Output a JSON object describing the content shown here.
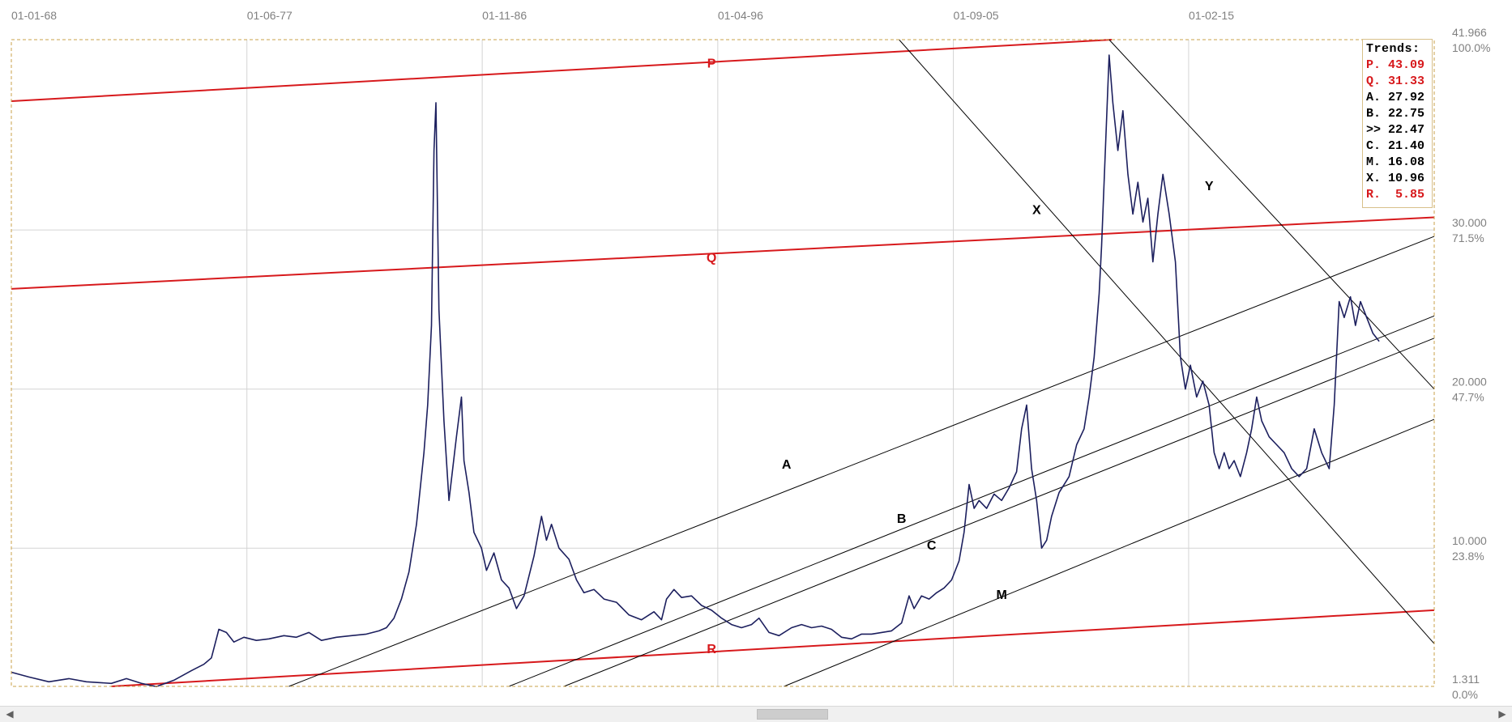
{
  "chart_data": {
    "type": "line",
    "title": "",
    "xlabel": "",
    "ylabel": "",
    "x_tick_labels": [
      "01-01-68",
      "01-06-77",
      "01-11-86",
      "01-04-96",
      "01-09-05",
      "01-02-15"
    ],
    "x_tick_years": [
      1968.0,
      1977.42,
      1986.83,
      1996.25,
      2005.67,
      2015.08
    ],
    "xlim": [
      1968.0,
      2024.9
    ],
    "ylim": [
      1.311,
      41.966
    ],
    "grid": true,
    "y_ticks": [
      {
        "value": 41.966,
        "label": "41.966",
        "pct": "100.0%"
      },
      {
        "value": 30.0,
        "label": "30.000",
        "pct": "71.5%"
      },
      {
        "value": 20.0,
        "label": "20.000",
        "pct": "47.7%"
      },
      {
        "value": 10.0,
        "label": "10.000",
        "pct": "23.8%"
      },
      {
        "value": 1.311,
        "label": "1.311",
        "pct": "0.0%"
      }
    ],
    "series": [
      {
        "color": "#1c1f5e",
        "points": [
          [
            1968.0,
            2.2
          ],
          [
            1968.7,
            1.9
          ],
          [
            1969.5,
            1.6
          ],
          [
            1970.3,
            1.8
          ],
          [
            1971.0,
            1.6
          ],
          [
            1972.0,
            1.5
          ],
          [
            1972.6,
            1.8
          ],
          [
            1973.2,
            1.5
          ],
          [
            1973.8,
            1.3
          ],
          [
            1974.5,
            1.7
          ],
          [
            1975.2,
            2.3
          ],
          [
            1975.7,
            2.7
          ],
          [
            1976.0,
            3.1
          ],
          [
            1976.3,
            4.9
          ],
          [
            1976.6,
            4.7
          ],
          [
            1976.9,
            4.1
          ],
          [
            1977.3,
            4.4
          ],
          [
            1977.8,
            4.2
          ],
          [
            1978.3,
            4.3
          ],
          [
            1978.9,
            4.5
          ],
          [
            1979.4,
            4.4
          ],
          [
            1979.9,
            4.7
          ],
          [
            1980.4,
            4.2
          ],
          [
            1981.0,
            4.4
          ],
          [
            1981.6,
            4.5
          ],
          [
            1982.2,
            4.6
          ],
          [
            1982.7,
            4.8
          ],
          [
            1983.0,
            5.0
          ],
          [
            1983.3,
            5.6
          ],
          [
            1983.6,
            6.8
          ],
          [
            1983.9,
            8.5
          ],
          [
            1984.2,
            11.5
          ],
          [
            1984.5,
            16.0
          ],
          [
            1984.65,
            19.0
          ],
          [
            1984.8,
            24.0
          ],
          [
            1984.9,
            35.0
          ],
          [
            1984.98,
            38.0
          ],
          [
            1985.1,
            25.0
          ],
          [
            1985.3,
            18.0
          ],
          [
            1985.5,
            13.0
          ],
          [
            1985.65,
            15.0
          ],
          [
            1985.8,
            17.0
          ],
          [
            1986.0,
            19.5
          ],
          [
            1986.1,
            15.5
          ],
          [
            1986.3,
            13.5
          ],
          [
            1986.5,
            11.0
          ],
          [
            1986.8,
            10.0
          ],
          [
            1987.0,
            8.6
          ],
          [
            1987.3,
            9.7
          ],
          [
            1987.6,
            8.0
          ],
          [
            1987.9,
            7.5
          ],
          [
            1988.2,
            6.2
          ],
          [
            1988.5,
            7.0
          ],
          [
            1988.9,
            9.5
          ],
          [
            1989.2,
            12.0
          ],
          [
            1989.4,
            10.5
          ],
          [
            1989.6,
            11.5
          ],
          [
            1989.9,
            10.0
          ],
          [
            1990.3,
            9.3
          ],
          [
            1990.6,
            8.0
          ],
          [
            1990.9,
            7.2
          ],
          [
            1991.3,
            7.4
          ],
          [
            1991.7,
            6.8
          ],
          [
            1992.2,
            6.6
          ],
          [
            1992.7,
            5.8
          ],
          [
            1993.2,
            5.5
          ],
          [
            1993.7,
            6.0
          ],
          [
            1994.0,
            5.5
          ],
          [
            1994.2,
            6.8
          ],
          [
            1994.5,
            7.4
          ],
          [
            1994.8,
            6.9
          ],
          [
            1995.2,
            7.0
          ],
          [
            1995.6,
            6.4
          ],
          [
            1996.0,
            6.1
          ],
          [
            1996.4,
            5.6
          ],
          [
            1996.8,
            5.2
          ],
          [
            1997.2,
            5.0
          ],
          [
            1997.6,
            5.2
          ],
          [
            1997.9,
            5.6
          ],
          [
            1998.3,
            4.7
          ],
          [
            1998.7,
            4.5
          ],
          [
            1999.2,
            5.0
          ],
          [
            1999.6,
            5.2
          ],
          [
            2000.0,
            5.0
          ],
          [
            2000.4,
            5.1
          ],
          [
            2000.8,
            4.9
          ],
          [
            2001.2,
            4.4
          ],
          [
            2001.6,
            4.3
          ],
          [
            2002.0,
            4.6
          ],
          [
            2002.4,
            4.6
          ],
          [
            2002.8,
            4.7
          ],
          [
            2003.2,
            4.8
          ],
          [
            2003.6,
            5.3
          ],
          [
            2003.9,
            7.0
          ],
          [
            2004.1,
            6.2
          ],
          [
            2004.4,
            7.0
          ],
          [
            2004.7,
            6.8
          ],
          [
            2005.0,
            7.2
          ],
          [
            2005.3,
            7.5
          ],
          [
            2005.6,
            8.0
          ],
          [
            2005.9,
            9.2
          ],
          [
            2006.1,
            11.0
          ],
          [
            2006.3,
            14.0
          ],
          [
            2006.5,
            12.5
          ],
          [
            2006.7,
            13.0
          ],
          [
            2007.0,
            12.5
          ],
          [
            2007.3,
            13.4
          ],
          [
            2007.6,
            13.0
          ],
          [
            2007.9,
            13.8
          ],
          [
            2008.2,
            14.8
          ],
          [
            2008.4,
            17.5
          ],
          [
            2008.6,
            19.0
          ],
          [
            2008.8,
            15.0
          ],
          [
            2009.0,
            13.0
          ],
          [
            2009.2,
            10.0
          ],
          [
            2009.4,
            10.5
          ],
          [
            2009.6,
            12.0
          ],
          [
            2009.9,
            13.5
          ],
          [
            2010.3,
            14.5
          ],
          [
            2010.6,
            16.5
          ],
          [
            2010.9,
            17.5
          ],
          [
            2011.1,
            19.5
          ],
          [
            2011.3,
            22.0
          ],
          [
            2011.5,
            26.0
          ],
          [
            2011.6,
            29.0
          ],
          [
            2011.7,
            33.0
          ],
          [
            2011.8,
            37.0
          ],
          [
            2011.9,
            41.0
          ],
          [
            2012.05,
            38.0
          ],
          [
            2012.25,
            35.0
          ],
          [
            2012.45,
            37.5
          ],
          [
            2012.65,
            33.5
          ],
          [
            2012.85,
            31.0
          ],
          [
            2013.05,
            33.0
          ],
          [
            2013.25,
            30.5
          ],
          [
            2013.45,
            32.0
          ],
          [
            2013.65,
            28.0
          ],
          [
            2013.85,
            31.0
          ],
          [
            2014.05,
            33.5
          ],
          [
            2014.3,
            31.0
          ],
          [
            2014.55,
            28.0
          ],
          [
            2014.75,
            22.0
          ],
          [
            2014.95,
            20.0
          ],
          [
            2015.15,
            21.5
          ],
          [
            2015.4,
            19.5
          ],
          [
            2015.65,
            20.5
          ],
          [
            2015.9,
            19.0
          ],
          [
            2016.1,
            16.0
          ],
          [
            2016.3,
            15.0
          ],
          [
            2016.5,
            16.0
          ],
          [
            2016.7,
            15.0
          ],
          [
            2016.9,
            15.5
          ],
          [
            2017.15,
            14.5
          ],
          [
            2017.4,
            16.0
          ],
          [
            2017.6,
            17.5
          ],
          [
            2017.8,
            19.5
          ],
          [
            2018.0,
            18.0
          ],
          [
            2018.3,
            17.0
          ],
          [
            2018.6,
            16.5
          ],
          [
            2018.9,
            16.0
          ],
          [
            2019.2,
            15.0
          ],
          [
            2019.5,
            14.5
          ],
          [
            2019.8,
            15.0
          ],
          [
            2020.1,
            17.5
          ],
          [
            2020.4,
            16.0
          ],
          [
            2020.7,
            15.0
          ],
          [
            2020.9,
            19.0
          ],
          [
            2021.1,
            25.5
          ],
          [
            2021.3,
            24.5
          ],
          [
            2021.55,
            25.8
          ],
          [
            2021.75,
            24.0
          ],
          [
            2021.95,
            25.5
          ],
          [
            2022.2,
            24.5
          ],
          [
            2022.45,
            23.5
          ],
          [
            2022.7,
            23.0
          ]
        ]
      }
    ],
    "trend_lines": [
      {
        "label": "P",
        "color": "#d7191c",
        "points": [
          [
            1968.0,
            38.1
          ],
          [
            2012.0,
            41.966
          ]
        ],
        "label_at": [
          1996.0,
          40.2
        ]
      },
      {
        "label": "Q",
        "color": "#d7191c",
        "points": [
          [
            1968.0,
            26.3
          ],
          [
            2024.9,
            30.8
          ]
        ],
        "label_at": [
          1996.0,
          28.0
        ]
      },
      {
        "label": "R",
        "color": "#d7191c",
        "points": [
          [
            1972.0,
            1.311
          ],
          [
            2024.9,
            6.1
          ]
        ],
        "label_at": [
          1996.0,
          3.4
        ]
      },
      {
        "label": "A",
        "color": "#000000",
        "points": [
          [
            1979.1,
            1.311
          ],
          [
            2024.9,
            29.6
          ]
        ],
        "label_at": [
          1999.0,
          15.0
        ]
      },
      {
        "label": "B",
        "color": "#000000",
        "points": [
          [
            1987.9,
            1.311
          ],
          [
            2024.9,
            24.6
          ]
        ],
        "label_at": [
          2003.6,
          11.6
        ]
      },
      {
        "label": "C",
        "color": "#000000",
        "points": [
          [
            1990.1,
            1.311
          ],
          [
            2024.9,
            23.2
          ]
        ],
        "label_at": [
          2004.8,
          9.9
        ]
      },
      {
        "label": "M",
        "color": "#000000",
        "points": [
          [
            1998.9,
            1.311
          ],
          [
            2024.9,
            18.1
          ]
        ],
        "label_at": [
          2007.6,
          6.8
        ]
      },
      {
        "label": "X",
        "color": "#000000",
        "points": [
          [
            2003.5,
            41.966
          ],
          [
            2024.9,
            4.0
          ]
        ],
        "label_at": [
          2009.0,
          31.0
        ]
      },
      {
        "label": "Y",
        "color": "#000000",
        "points": [
          [
            2011.9,
            41.966
          ],
          [
            2024.9,
            20.0
          ]
        ],
        "label_at": [
          2015.9,
          32.5
        ]
      }
    ],
    "legend": {
      "title": "Trends:",
      "placement": "top-right",
      "items": [
        {
          "name": "P.",
          "value": "43.09",
          "color": "#d7191c"
        },
        {
          "name": "Q.",
          "value": "31.33",
          "color": "#d7191c"
        },
        {
          "name": "A.",
          "value": "27.92",
          "color": "#000000"
        },
        {
          "name": "B.",
          "value": "22.75",
          "color": "#000000"
        },
        {
          "name": ">>",
          "value": "22.47",
          "color": "#000000"
        },
        {
          "name": "C.",
          "value": "21.40",
          "color": "#000000"
        },
        {
          "name": "M.",
          "value": "16.08",
          "color": "#000000"
        },
        {
          "name": "X.",
          "value": "10.96",
          "color": "#000000"
        },
        {
          "name": "R.",
          "value": " 5.85",
          "color": "#d7191c"
        }
      ]
    },
    "colors": {
      "frame": "#c9a24a",
      "grid": "#d4d4d4",
      "axis_text": "#808080",
      "price_line": "#1c1f5e",
      "trend_red": "#d7191c"
    }
  },
  "scrollbar": {
    "left_arrow": "◀",
    "right_arrow": "▶"
  }
}
